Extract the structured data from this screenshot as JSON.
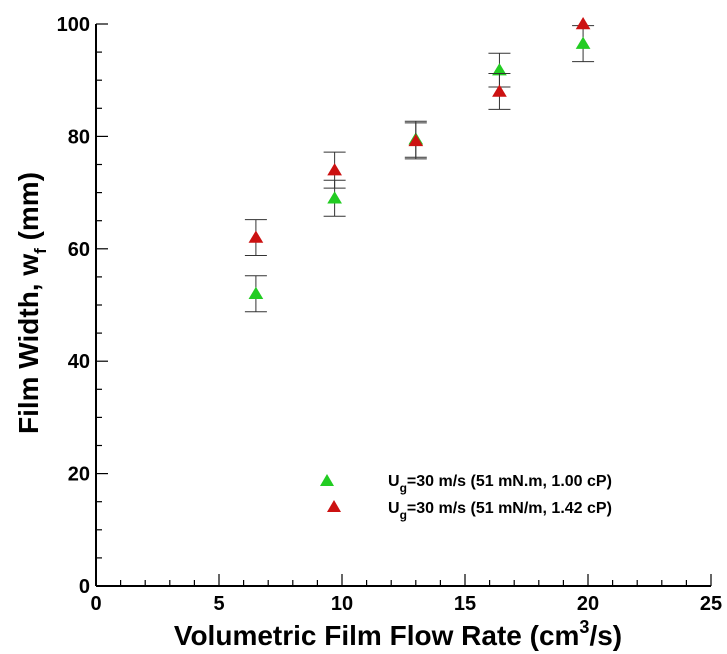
{
  "chart_data": {
    "type": "scatter",
    "title": "",
    "xlabel_parts": [
      "Volumetric Film Flow Rate (cm",
      "3",
      "/s)"
    ],
    "ylabel_parts": [
      "Film Width, w",
      "f",
      " (mm)"
    ],
    "xlim": [
      0,
      25
    ],
    "ylim": [
      0,
      100
    ],
    "xticks": [
      0,
      5,
      10,
      15,
      20,
      25
    ],
    "yticks": [
      0,
      20,
      40,
      60,
      80,
      100
    ],
    "x_minor_step": 1,
    "y_minor_step": 5,
    "grid": false,
    "legend_position": "bottom-right",
    "series": [
      {
        "name_parts": [
          "U",
          "g",
          "=30 m/s (51 mN.m, 1.00 cP)"
        ],
        "color": "#22cc22",
        "marker": "triangle",
        "points": [
          {
            "x": 6.5,
            "y": 52.0,
            "err": 3.2
          },
          {
            "x": 9.7,
            "y": 69.0,
            "err": 3.2
          },
          {
            "x": 13.0,
            "y": 79.5,
            "err": 3.2
          },
          {
            "x": 16.4,
            "y": 91.8,
            "err": 3.0
          },
          {
            "x": 19.8,
            "y": 96.5,
            "err": 3.2
          }
        ]
      },
      {
        "name_parts": [
          "U",
          "g",
          "=30 m/s (51 mN/m, 1.42 cP)"
        ],
        "color": "#cc1111",
        "marker": "triangle",
        "points": [
          {
            "x": 6.5,
            "y": 62.0,
            "err": 3.2
          },
          {
            "x": 9.7,
            "y": 74.0,
            "err": 3.2
          },
          {
            "x": 13.0,
            "y": 79.2,
            "err": 3.2
          },
          {
            "x": 16.4,
            "y": 88.0,
            "err": 3.2
          },
          {
            "x": 19.8,
            "y": 100.0,
            "err": 0
          }
        ]
      }
    ]
  }
}
